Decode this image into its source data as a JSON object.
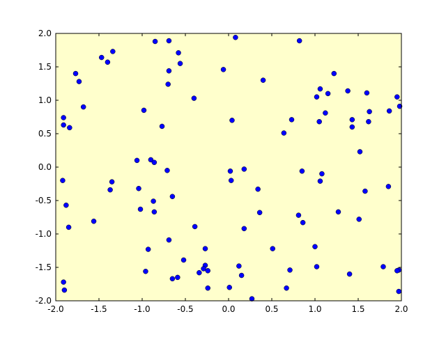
{
  "chart_data": {
    "type": "scatter",
    "title": "",
    "xlabel": "",
    "ylabel": "",
    "xlim": [
      -2.0,
      2.0
    ],
    "ylim": [
      -2.0,
      2.0
    ],
    "grid": false,
    "x_ticks": [
      "-2.0",
      "-1.5",
      "-1.0",
      "-0.5",
      "0.0",
      "0.5",
      "1.0",
      "1.5",
      "2.0"
    ],
    "y_ticks": [
      "-2.0",
      "-1.5",
      "-1.0",
      "-0.5",
      "0.0",
      "0.5",
      "1.0",
      "1.5",
      "2.0"
    ],
    "background_color": "#ffffcc",
    "marker_color": "#0000ff",
    "points": [
      [
        0.08,
        1.94
      ],
      [
        -0.85,
        1.88
      ],
      [
        -0.69,
        1.89
      ],
      [
        0.82,
        1.89
      ],
      [
        -1.34,
        1.73
      ],
      [
        -0.58,
        1.71
      ],
      [
        -1.47,
        1.64
      ],
      [
        -1.4,
        1.57
      ],
      [
        -0.56,
        1.55
      ],
      [
        -1.77,
        1.4
      ],
      [
        -0.69,
        1.44
      ],
      [
        -0.06,
        1.46
      ],
      [
        1.22,
        1.4
      ],
      [
        -1.73,
        1.28
      ],
      [
        0.4,
        1.3
      ],
      [
        -0.7,
        1.24
      ],
      [
        1.06,
        1.17
      ],
      [
        1.38,
        1.14
      ],
      [
        1.15,
        1.1
      ],
      [
        1.6,
        1.11
      ],
      [
        1.02,
        1.05
      ],
      [
        1.95,
        1.05
      ],
      [
        -0.4,
        1.03
      ],
      [
        -0.98,
        0.85
      ],
      [
        -1.68,
        0.9
      ],
      [
        1.98,
        0.91
      ],
      [
        -1.91,
        0.74
      ],
      [
        1.12,
        0.81
      ],
      [
        1.63,
        0.83
      ],
      [
        1.86,
        0.84
      ],
      [
        0.04,
        0.7
      ],
      [
        0.73,
        0.71
      ],
      [
        1.05,
        0.68
      ],
      [
        1.43,
        0.71
      ],
      [
        1.62,
        0.68
      ],
      [
        -1.91,
        0.63
      ],
      [
        -1.84,
        0.59
      ],
      [
        -0.77,
        0.61
      ],
      [
        1.43,
        0.6
      ],
      [
        0.64,
        0.51
      ],
      [
        1.52,
        0.23
      ],
      [
        -1.06,
        0.1
      ],
      [
        -0.9,
        0.11
      ],
      [
        -0.86,
        0.07
      ],
      [
        -0.71,
        -0.05
      ],
      [
        0.02,
        -0.06
      ],
      [
        0.18,
        -0.03
      ],
      [
        0.85,
        -0.06
      ],
      [
        1.08,
        -0.1
      ],
      [
        -1.92,
        -0.2
      ],
      [
        -1.35,
        -0.22
      ],
      [
        0.03,
        -0.2
      ],
      [
        1.06,
        -0.21
      ],
      [
        -1.04,
        -0.32
      ],
      [
        -1.37,
        -0.34
      ],
      [
        0.34,
        -0.33
      ],
      [
        1.58,
        -0.36
      ],
      [
        1.85,
        -0.29
      ],
      [
        -0.65,
        -0.44
      ],
      [
        -1.88,
        -0.57
      ],
      [
        -0.87,
        -0.51
      ],
      [
        -1.02,
        -0.63
      ],
      [
        -0.86,
        -0.67
      ],
      [
        0.36,
        -0.68
      ],
      [
        1.27,
        -0.67
      ],
      [
        0.81,
        -0.72
      ],
      [
        1.51,
        -0.78
      ],
      [
        -1.56,
        -0.81
      ],
      [
        0.86,
        -0.83
      ],
      [
        -1.85,
        -0.9
      ],
      [
        -0.39,
        -0.89
      ],
      [
        0.18,
        -0.92
      ],
      [
        -0.69,
        -1.09
      ],
      [
        1.0,
        -1.19
      ],
      [
        -0.93,
        -1.23
      ],
      [
        -0.27,
        -1.22
      ],
      [
        0.51,
        -1.22
      ],
      [
        -0.52,
        -1.39
      ],
      [
        -0.27,
        -1.47
      ],
      [
        0.12,
        -1.48
      ],
      [
        1.02,
        -1.49
      ],
      [
        1.79,
        -1.49
      ],
      [
        -0.29,
        -1.52
      ],
      [
        0.71,
        -1.54
      ],
      [
        -0.96,
        -1.56
      ],
      [
        -0.24,
        -1.55
      ],
      [
        1.97,
        -1.54
      ],
      [
        1.95,
        -1.55
      ],
      [
        -0.34,
        -1.58
      ],
      [
        1.4,
        -1.6
      ],
      [
        0.15,
        -1.62
      ],
      [
        -0.59,
        -1.65
      ],
      [
        -0.65,
        -1.67
      ],
      [
        -1.91,
        -1.72
      ],
      [
        0.01,
        -1.8
      ],
      [
        -0.24,
        -1.81
      ],
      [
        0.67,
        -1.81
      ],
      [
        -1.9,
        -1.84
      ],
      [
        1.97,
        -1.86
      ],
      [
        0.27,
        -1.97
      ]
    ]
  }
}
